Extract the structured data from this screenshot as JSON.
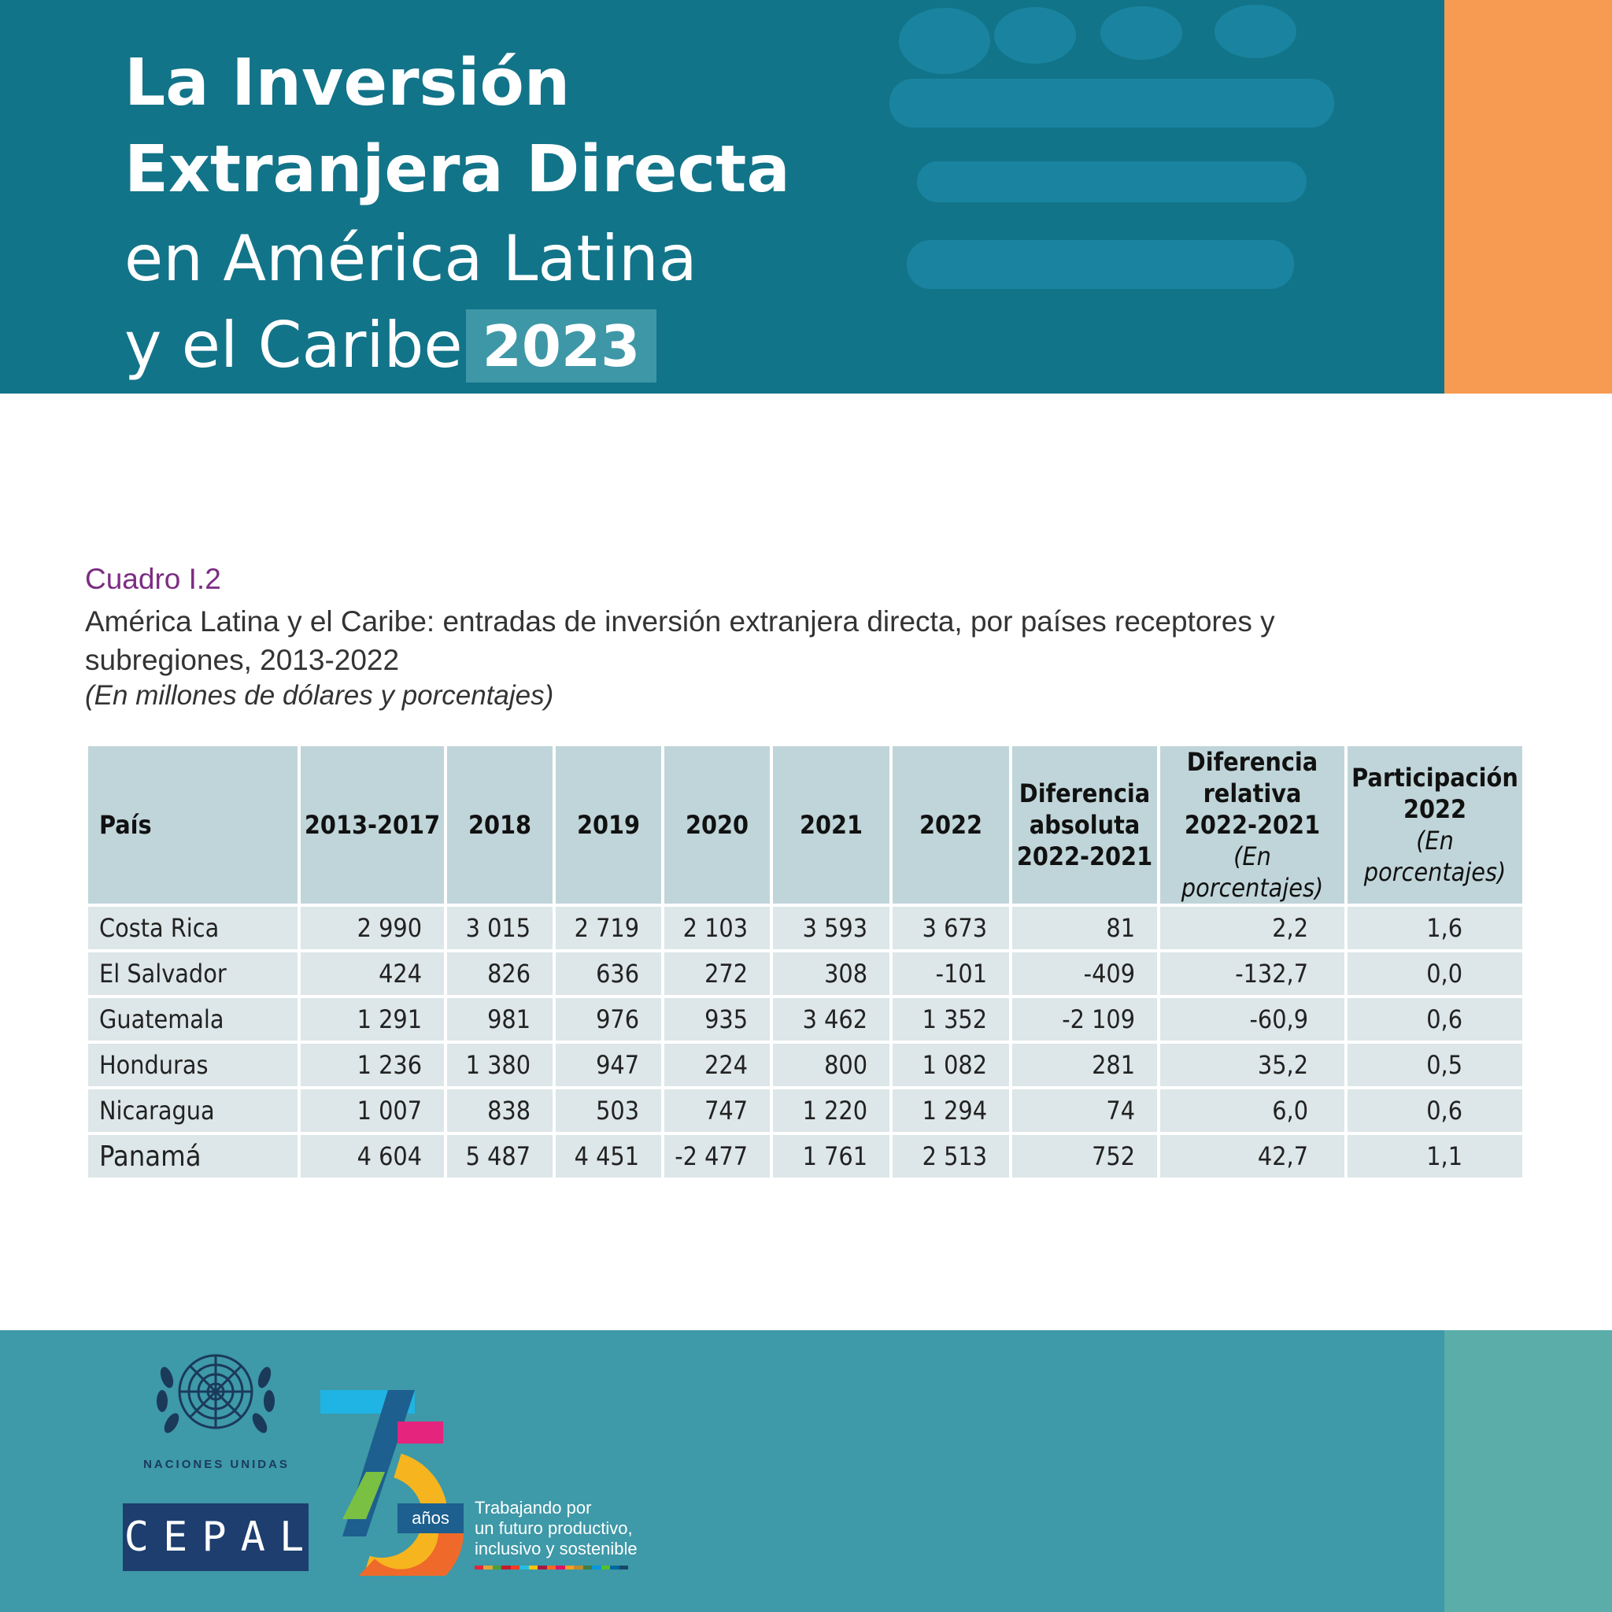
{
  "header": {
    "title_line1": "La Inversión",
    "title_line2": "Extranjera Directa",
    "title_line3": "en América Latina",
    "title_line4": "y el Caribe",
    "year": "2023",
    "colors": {
      "header_bg": "#127489",
      "accent_orange": "#f79a52",
      "badge_bg": "#3e97a6"
    }
  },
  "caption": {
    "label": "Cuadro I.2",
    "title": "América Latina y el Caribe: entradas de inversión extranjera directa, por países receptores y subregiones, 2013-2022",
    "subtitle": "(En millones de dólares y porcentajes)"
  },
  "table": {
    "headers": {
      "country": "País",
      "p2013_2017": "2013-2017",
      "y2018": "2018",
      "y2019": "2019",
      "y2020": "2020",
      "y2021": "2021",
      "y2022": "2022",
      "abs_line1": "Diferencia",
      "abs_line2": "absoluta",
      "abs_line3": "2022-2021",
      "rel_line1": "Diferencia",
      "rel_line2": "relativa",
      "rel_line3": "2022-2021",
      "rel_unit": "(En porcentajes)",
      "share_line1": "Participación",
      "share_line2": "2022",
      "share_unit": "(En porcentajes)"
    },
    "rows": [
      {
        "country": "Costa Rica",
        "c1": "2 990",
        "c2": "3 015",
        "c3": "2 719",
        "c4": "2 103",
        "c5": "3 593",
        "c6": "3 673",
        "abs": "81",
        "rel": "2,2",
        "share": "1,6"
      },
      {
        "country": "El Salvador",
        "c1": "424",
        "c2": "826",
        "c3": "636",
        "c4": "272",
        "c5": "308",
        "c6": "-101",
        "abs": "-409",
        "rel": "-132,7",
        "share": "0,0"
      },
      {
        "country": "Guatemala",
        "c1": "1 291",
        "c2": "981",
        "c3": "976",
        "c4": "935",
        "c5": "3 462",
        "c6": "1 352",
        "abs": "-2 109",
        "rel": "-60,9",
        "share": "0,6"
      },
      {
        "country": "Honduras",
        "c1": "1 236",
        "c2": "1 380",
        "c3": "947",
        "c4": "224",
        "c5": "800",
        "c6": "1 082",
        "abs": "281",
        "rel": "35,2",
        "share": "0,5"
      },
      {
        "country": "Nicaragua",
        "c1": "1 007",
        "c2": "838",
        "c3": "503",
        "c4": "747",
        "c5": "1 220",
        "c6": "1 294",
        "abs": "74",
        "rel": "6,0",
        "share": "0,6"
      },
      {
        "country": "Panamá",
        "c1": "4 604",
        "c2": "5 487",
        "c3": "4 451",
        "c4": "-2 477",
        "c5": "1 761",
        "c6": "2 513",
        "abs": "752",
        "rel": "42,7",
        "share": "1,1"
      }
    ]
  },
  "footer": {
    "un_label": "NACIONES UNIDAS",
    "cepal": "CEPAL",
    "anos": "años",
    "slogan_line1": "Trabajando por",
    "slogan_line2": "un futuro productivo,",
    "slogan_line3": "inclusivo y sostenible",
    "colors": {
      "footer_bg": "#3e99a8",
      "accent_teal": "#5aada9",
      "cepal_bg": "#1d3e6e"
    }
  }
}
